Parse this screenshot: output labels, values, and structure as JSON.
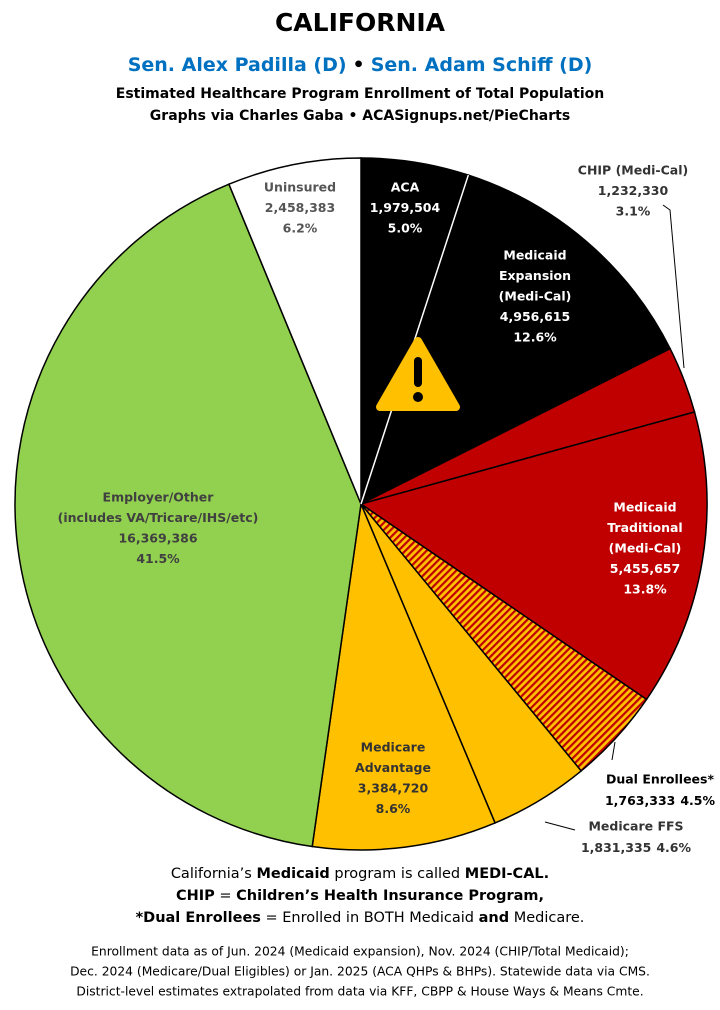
{
  "chart_data": {
    "type": "pie",
    "title": "CALIFORNIA",
    "senators": [
      "Sen. Alex Padilla (D)",
      "Sen. Adam Schiff (D)"
    ],
    "senator_separator": "•",
    "senator_color": "#0070c0",
    "subtitle": [
      "Estimated Healthcare Program Enrollment of Total Population",
      "Graphs via Charles Gaba  •  ACASignups.net/PieCharts"
    ],
    "categories": [
      [
        "ACA"
      ],
      [
        "Medicaid",
        "Expansion",
        "(Medi-Cal)"
      ],
      [
        "CHIP (Medi-Cal)"
      ],
      [
        "Medicaid",
        "Traditional",
        "(Medi-Cal)"
      ],
      [
        "Dual Enrollees*"
      ],
      [
        "Medicare FFS"
      ],
      [
        "Medicare",
        "Advantage"
      ],
      [
        "Employer/Other",
        "(includes VA/Tricare/IHS/etc)"
      ],
      [
        "Uninsured"
      ]
    ],
    "values": [
      1979504,
      4956615,
      1232330,
      5455657,
      1763333,
      1831335,
      3384720,
      16369386,
      2458383
    ],
    "value_labels": [
      "1,979,504",
      "4,956,615",
      "1,232,330",
      "5,455,657",
      "1,763,333",
      "1,831,335",
      "3,384,720",
      "16,369,386",
      "2,458,383"
    ],
    "percents": [
      5.0,
      12.6,
      3.1,
      13.8,
      4.5,
      4.6,
      8.6,
      41.5,
      6.2
    ],
    "percent_labels": [
      "5.0%",
      "12.6%",
      "3.1%",
      "13.8%",
      "4.5%",
      "4.6%",
      "8.6%",
      "41.5%",
      "6.2%"
    ],
    "colors": [
      "#000000",
      "#000000",
      "#c00000",
      "#c00000",
      "hatch",
      "#ffc000",
      "#ffc000",
      "#92d050",
      "#ffffff"
    ],
    "notes": [
      [
        {
          "text": "California’s ",
          "bold": false
        },
        {
          "text": "Medicaid",
          "bold": true
        },
        {
          "text": " program is called ",
          "bold": false
        },
        {
          "text": "MEDI-CAL.",
          "bold": true
        }
      ],
      [
        {
          "text": "CHIP",
          "bold": true
        },
        {
          "text": " = ",
          "bold": false
        },
        {
          "text": "Children’s Health Insurance Program,",
          "bold": true
        }
      ],
      [
        {
          "text": "*Dual Enrollees",
          "bold": true
        },
        {
          "text": " = Enrolled in BOTH Medicaid ",
          "bold": false
        },
        {
          "text": "and",
          "bold": true
        },
        {
          "text": " Medicare.",
          "bold": false
        }
      ]
    ],
    "footer": [
      "Enrollment data as of Jun. 2024 (Medicaid expansion), Nov. 2024 (CHIP/Total Medicaid);",
      "Dec. 2024 (Medicare/Dual Eligibles) or Jan. 2025 (ACA QHPs & BHPs). Statewide data via CMS.",
      "District-level estimates extrapolated from data via KFF, CBPP & House Ways & Means Cmte."
    ]
  }
}
